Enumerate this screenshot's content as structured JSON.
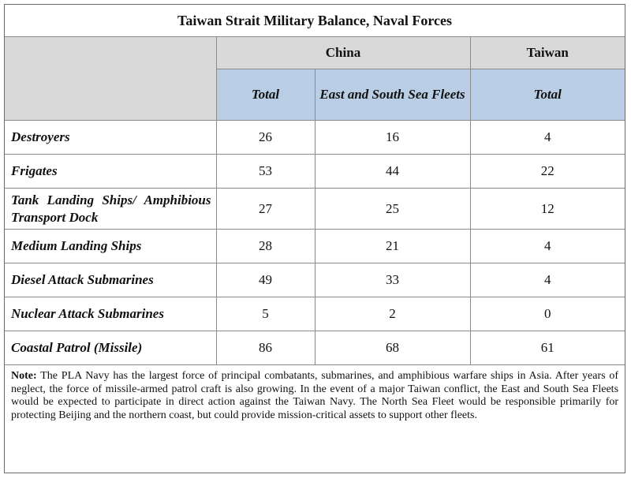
{
  "title": "Taiwan Strait Military Balance, Naval Forces",
  "headers": {
    "china": "China",
    "taiwan": "Taiwan",
    "china_total": "Total",
    "china_east_south": "East and South Sea Fleets",
    "taiwan_total": "Total"
  },
  "rows": [
    {
      "label": "Destroyers",
      "china_total": "26",
      "east_south": "16",
      "taiwan_total": "4"
    },
    {
      "label": "Frigates",
      "china_total": "53",
      "east_south": "44",
      "taiwan_total": "22"
    },
    {
      "label": "Tank Landing Ships/ Amphibious Transport Dock",
      "china_total": "27",
      "east_south": "25",
      "taiwan_total": "12"
    },
    {
      "label": "Medium Landing Ships",
      "china_total": "28",
      "east_south": "21",
      "taiwan_total": "4"
    },
    {
      "label": "Diesel Attack Submarines",
      "china_total": "49",
      "east_south": "33",
      "taiwan_total": "4"
    },
    {
      "label": "Nuclear Attack Submarines",
      "china_total": "5",
      "east_south": "2",
      "taiwan_total": "0"
    },
    {
      "label": "Coastal Patrol (Missile)",
      "china_total": "86",
      "east_south": "68",
      "taiwan_total": "61"
    }
  ],
  "note": {
    "label": "Note:",
    "text": "The PLA Navy has the largest force of principal combatants, submarines, and amphibious warfare ships in Asia.  After years of neglect, the force of missile-armed patrol craft is also growing.  In the event of a major Taiwan conflict, the East and South Sea Fleets would be expected to participate in direct action against the Taiwan Navy.  The North Sea Fleet would be responsible primarily for protecting Beijing and the northern coast, but could provide mission-critical assets to support other fleets."
  },
  "colors": {
    "header_gray": "#d9d9d9",
    "header_blue": "#b9cde4"
  }
}
